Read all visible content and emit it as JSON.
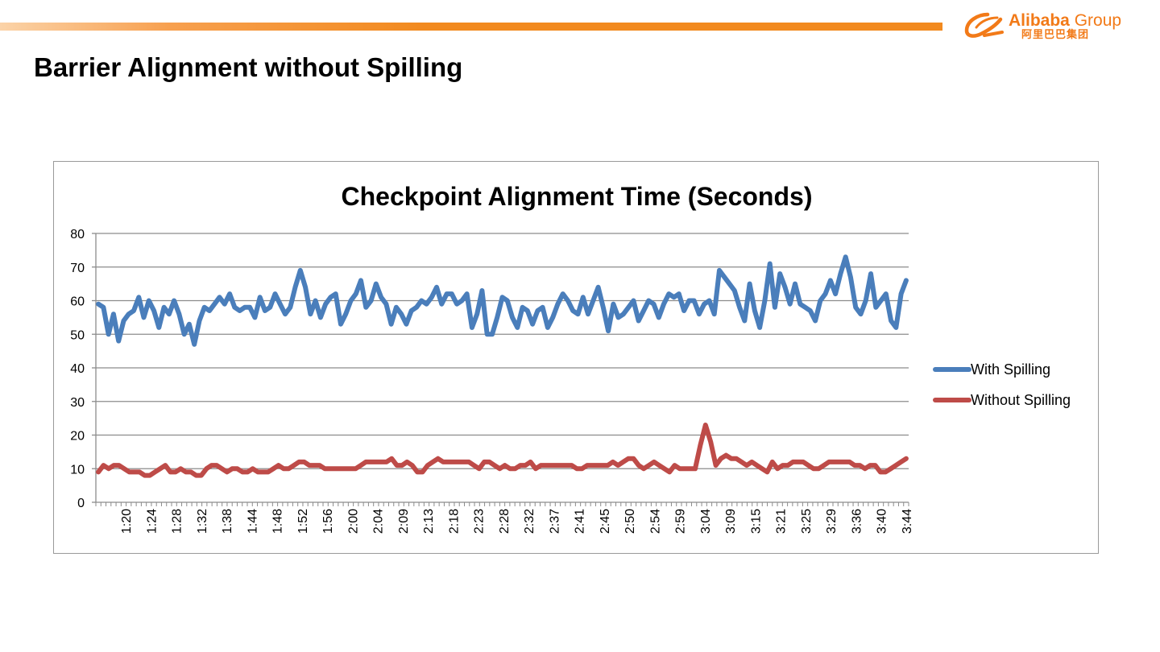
{
  "header": {
    "title": "Barrier Alignment without Spilling",
    "logo": {
      "brand": "Alibaba",
      "group": "Group",
      "chinese": "阿里巴巴集团",
      "color": "#f27a18"
    }
  },
  "chart_data": {
    "type": "line",
    "title": "Checkpoint Alignment Time (Seconds)",
    "xlabel": "",
    "ylabel": "",
    "ylim": [
      0,
      80
    ],
    "yticks": [
      0,
      10,
      20,
      30,
      40,
      50,
      60,
      70,
      80
    ],
    "x_tick_labels": [
      "1:20",
      "1:24",
      "1:28",
      "1:32",
      "1:38",
      "1:44",
      "1:48",
      "1:52",
      "1:56",
      "2:00",
      "2:04",
      "2:09",
      "2:13",
      "2:18",
      "2:23",
      "2:28",
      "2:32",
      "2:37",
      "2:41",
      "2:45",
      "2:50",
      "2:54",
      "2:59",
      "3:04",
      "3:09",
      "3:15",
      "3:21",
      "3:25",
      "3:29",
      "3:36",
      "3:40",
      "3:44"
    ],
    "grid": "horizontal",
    "legend_position": "right",
    "series": [
      {
        "name": "With Spilling",
        "color": "#4a7ebb",
        "values": [
          59,
          58,
          50,
          56,
          48,
          54,
          56,
          57,
          61,
          55,
          60,
          57,
          52,
          58,
          56,
          60,
          56,
          50,
          53,
          47,
          54,
          58,
          57,
          59,
          61,
          59,
          62,
          58,
          57,
          58,
          58,
          55,
          61,
          57,
          58,
          62,
          59,
          56,
          58,
          64,
          69,
          64,
          56,
          60,
          55,
          59,
          61,
          62,
          53,
          56,
          60,
          62,
          66,
          58,
          60,
          65,
          61,
          59,
          53,
          58,
          56,
          53,
          57,
          58,
          60,
          59,
          61,
          64,
          59,
          62,
          62,
          59,
          60,
          62,
          52,
          56,
          63,
          50,
          50,
          55,
          61,
          60,
          55,
          52,
          58,
          57,
          53,
          57,
          58,
          52,
          55,
          59,
          62,
          60,
          57,
          56,
          61,
          56,
          60,
          64,
          58,
          51,
          59,
          55,
          56,
          58,
          60,
          54,
          57,
          60,
          59,
          55,
          59,
          62,
          61,
          62,
          57,
          60,
          60,
          56,
          59,
          60,
          56,
          69,
          67,
          65,
          63,
          58,
          54,
          65,
          57,
          52,
          60,
          71,
          58,
          68,
          64,
          59,
          65,
          59,
          58,
          57,
          54,
          60,
          62,
          66,
          62,
          68,
          73,
          67,
          58,
          56,
          60,
          68,
          58,
          60,
          62,
          54,
          52,
          62,
          66
        ]
      },
      {
        "name": "Without Spilling",
        "color": "#be4b48",
        "values": [
          9,
          11,
          10,
          11,
          11,
          10,
          9,
          9,
          9,
          8,
          8,
          9,
          10,
          11,
          9,
          9,
          10,
          9,
          9,
          8,
          8,
          10,
          11,
          11,
          10,
          9,
          10,
          10,
          9,
          9,
          10,
          9,
          9,
          9,
          10,
          11,
          10,
          10,
          11,
          12,
          12,
          11,
          11,
          11,
          10,
          10,
          10,
          10,
          10,
          10,
          10,
          11,
          12,
          12,
          12,
          12,
          12,
          13,
          11,
          11,
          12,
          11,
          9,
          9,
          11,
          12,
          13,
          12,
          12,
          12,
          12,
          12,
          12,
          11,
          10,
          12,
          12,
          11,
          10,
          11,
          10,
          10,
          11,
          11,
          12,
          10,
          11,
          11,
          11,
          11,
          11,
          11,
          11,
          10,
          10,
          11,
          11,
          11,
          11,
          11,
          12,
          11,
          12,
          13,
          13,
          11,
          10,
          11,
          12,
          11,
          10,
          9,
          11,
          10,
          10,
          10,
          10,
          17,
          23,
          18,
          11,
          13,
          14,
          13,
          13,
          12,
          11,
          12,
          11,
          10,
          9,
          12,
          10,
          11,
          11,
          12,
          12,
          12,
          11,
          10,
          10,
          11,
          12,
          12,
          12,
          12,
          12,
          11,
          11,
          10,
          11,
          11,
          9,
          9,
          10,
          11,
          12,
          13
        ]
      }
    ]
  }
}
